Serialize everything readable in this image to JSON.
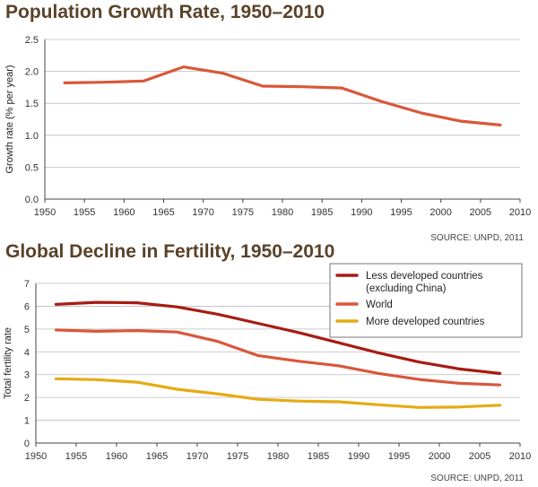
{
  "chart_data": [
    {
      "type": "line",
      "title": "Population Growth Rate, 1950–2010",
      "xlabel": "",
      "ylabel": "Growth rate (% per year)",
      "xlim": [
        1950,
        2010
      ],
      "ylim": [
        0,
        2.5
      ],
      "x_ticks": [
        "1950",
        "1955",
        "1960",
        "1965",
        "1970",
        "1975",
        "1980",
        "1985",
        "1990",
        "1995",
        "2000",
        "2005",
        "2010"
      ],
      "y_ticks": [
        "0.0",
        "0.5",
        "1.0",
        "1.5",
        "2.0",
        "2.5"
      ],
      "grid": true,
      "source": "SOURCE: UNPD, 2011",
      "series": [
        {
          "name": "Growth rate",
          "color": "#d9573a",
          "x": [
            1952.5,
            1957.5,
            1962.5,
            1967.5,
            1972.5,
            1977.5,
            1982.5,
            1987.5,
            1992.5,
            1997.5,
            2002.5,
            2007.5
          ],
          "values": [
            1.82,
            1.83,
            1.85,
            2.07,
            1.97,
            1.77,
            1.76,
            1.74,
            1.53,
            1.35,
            1.22,
            1.16
          ]
        }
      ]
    },
    {
      "type": "line",
      "title": "Global Decline in Fertility, 1950–2010",
      "xlabel": "",
      "ylabel": "Total fertility rate",
      "xlim": [
        1950,
        2010
      ],
      "ylim": [
        0,
        7
      ],
      "x_ticks": [
        "1950",
        "1955",
        "1960",
        "1965",
        "1970",
        "1975",
        "1980",
        "1985",
        "1990",
        "1995",
        "2000",
        "2005",
        "2010"
      ],
      "y_ticks": [
        "0",
        "1",
        "2",
        "3",
        "4",
        "5",
        "6",
        "7"
      ],
      "grid": true,
      "legend_position": "top-right",
      "source": "SOURCE: UNPD, 2011",
      "series": [
        {
          "name": "Less developed countries",
          "name2": "(excluding China)",
          "color": "#a61c12",
          "x": [
            1952.5,
            1957.5,
            1962.5,
            1967.5,
            1972.5,
            1977.5,
            1982.5,
            1987.5,
            1992.5,
            1997.5,
            2002.5,
            2007.5
          ],
          "values": [
            6.08,
            6.17,
            6.15,
            5.97,
            5.65,
            5.25,
            4.85,
            4.4,
            3.95,
            3.55,
            3.25,
            3.05
          ]
        },
        {
          "name": "World",
          "color": "#d9573a",
          "x": [
            1952.5,
            1957.5,
            1962.5,
            1967.5,
            1972.5,
            1977.5,
            1982.5,
            1987.5,
            1992.5,
            1997.5,
            2002.5,
            2007.5
          ],
          "values": [
            4.96,
            4.9,
            4.93,
            4.87,
            4.46,
            3.84,
            3.59,
            3.39,
            3.05,
            2.79,
            2.62,
            2.55
          ]
        },
        {
          "name": "More developed countries",
          "color": "#e6aa13",
          "x": [
            1952.5,
            1957.5,
            1962.5,
            1967.5,
            1972.5,
            1977.5,
            1982.5,
            1987.5,
            1992.5,
            1997.5,
            2002.5,
            2007.5
          ],
          "values": [
            2.82,
            2.78,
            2.67,
            2.36,
            2.16,
            1.92,
            1.84,
            1.81,
            1.68,
            1.56,
            1.58,
            1.66
          ]
        }
      ]
    }
  ]
}
